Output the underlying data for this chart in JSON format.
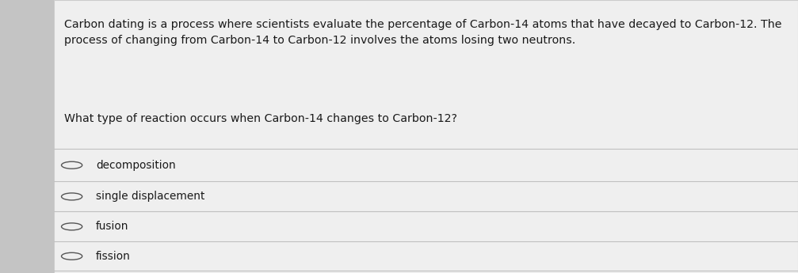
{
  "background_color": "#e0e0e0",
  "card_color": "#efefef",
  "border_color": "#cccccc",
  "text_color": "#1a1a1a",
  "paragraph_text": "Carbon dating is a process where scientists evaluate the percentage of Carbon-14 atoms that have decayed to Carbon-12. The\nprocess of changing from Carbon-14 to Carbon-12 involves the atoms losing two neutrons.",
  "question_text": "What type of reaction occurs when Carbon-14 changes to Carbon-12?",
  "options": [
    "decomposition",
    "single displacement",
    "fusion",
    "fission"
  ],
  "line_color": "#c0c0c0",
  "font_size_body": 10.2,
  "font_size_question": 10.2,
  "font_size_options": 9.8,
  "circle_color": "#555555",
  "left_strip_color": "#c4c4c4"
}
